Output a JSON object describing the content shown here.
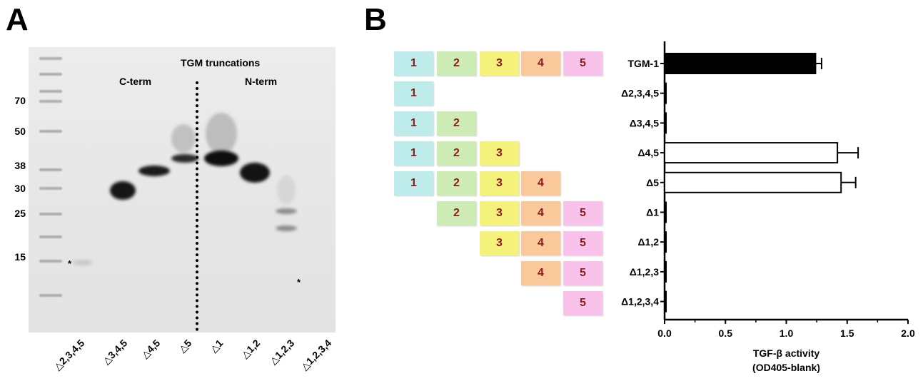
{
  "panel_a": {
    "letter": "A",
    "header": "TGM truncations",
    "c_term": "C-term",
    "n_term": "N-term",
    "star": "*",
    "mw_markers": [
      "70",
      "50",
      "38",
      "30",
      "25",
      "15"
    ],
    "lanes": [
      "△2,3,4,5",
      "△3,4,5",
      "△4,5",
      "△5",
      "△1",
      "△1,2",
      "△1,2,3",
      "△1,2,3,4"
    ]
  },
  "panel_b": {
    "letter": "B",
    "domain_colors": {
      "1": "#bdecea",
      "2": "#cdebb4",
      "3": "#f4f27a",
      "4": "#f9c99c",
      "5": "#f8c2ea"
    },
    "domain_rows": [
      [
        "1",
        "2",
        "3",
        "4",
        "5"
      ],
      [
        "1"
      ],
      [
        "1",
        "2"
      ],
      [
        "1",
        "2",
        "3"
      ],
      [
        "1",
        "2",
        "3",
        "4"
      ],
      [
        "2",
        "3",
        "4",
        "5"
      ],
      [
        "3",
        "4",
        "5"
      ],
      [
        "4",
        "5"
      ],
      [
        "5"
      ]
    ]
  },
  "chart_data": {
    "type": "bar",
    "orientation": "horizontal",
    "categories": [
      "TGM-1",
      "Δ2,3,4,5",
      "Δ3,4,5",
      "Δ4,5",
      "Δ5",
      "Δ1",
      "Δ1,2",
      "Δ1,2,3",
      "Δ1,2,3,4"
    ],
    "values": [
      1.24,
      0.01,
      0.01,
      1.42,
      1.45,
      0.01,
      0.0,
      0.0,
      0.01
    ],
    "errors": [
      0.05,
      0.0,
      0.0,
      0.17,
      0.12,
      0.0,
      0.0,
      0.0,
      0.0
    ],
    "fill": [
      "#000000",
      "#ffffff",
      "#ffffff",
      "#ffffff",
      "#ffffff",
      "#ffffff",
      "#ffffff",
      "#ffffff",
      "#ffffff"
    ],
    "xlim": [
      0,
      2.0
    ],
    "xticks": [
      "0.0",
      "0.5",
      "1.0",
      "1.5",
      "2.0"
    ],
    "xlabel_line1": "TGF-β activity",
    "xlabel_line2": "(OD405-blank)"
  }
}
